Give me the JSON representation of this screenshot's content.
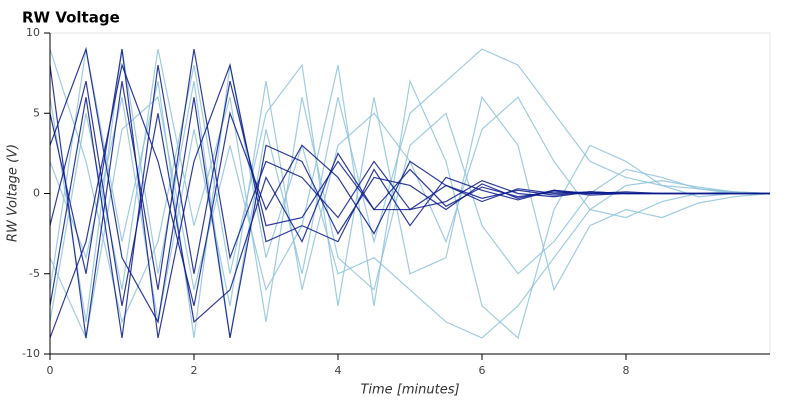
{
  "chart_data": {
    "type": "line",
    "title": "RW Voltage",
    "x_label": "Time [minutes]",
    "y_label": "RW Voltage (V)",
    "x": [
      0,
      0.5,
      1,
      1.5,
      2,
      2.5,
      3,
      3.5,
      4,
      4.5,
      5,
      5.5,
      6,
      6.5,
      7,
      7.5,
      8,
      8.5,
      9,
      9.5,
      10
    ],
    "xlim": [
      0,
      10
    ],
    "ylim": [
      -10,
      10
    ],
    "xticks": [
      0,
      2,
      4,
      6,
      8
    ],
    "yticks": [
      -10,
      -5,
      0,
      5,
      10
    ],
    "series": [
      {
        "color": "#8fc3dc",
        "values": [
          6,
          -8,
          9,
          -5,
          7,
          -9,
          4,
          -5,
          6,
          -3,
          5,
          7,
          9,
          8,
          5,
          2,
          1,
          0.5,
          0.3,
          0.1,
          0
        ]
      },
      {
        "color": "#8fc3dc",
        "values": [
          -6,
          9,
          -3,
          7,
          -9,
          8,
          -4,
          3,
          -5,
          -4,
          -6,
          -8,
          -9,
          -7,
          -4,
          -1,
          0.5,
          0.8,
          0.4,
          0.1,
          0
        ]
      },
      {
        "color": "#8fc3dc",
        "values": [
          2,
          -4,
          6,
          -8,
          4,
          -7,
          7,
          -6,
          3,
          5,
          2,
          -3,
          4,
          6,
          2,
          -1,
          -1.5,
          -0.5,
          0,
          0.1,
          0
        ]
      },
      {
        "color": "#8fc3dc",
        "values": [
          -8,
          5,
          -6,
          9,
          -2,
          6,
          -8,
          6,
          -4,
          -6,
          3,
          5,
          -2,
          -5,
          -3,
          0,
          1.5,
          1,
          0.3,
          0,
          0
        ]
      },
      {
        "color": "#8fc3dc",
        "values": [
          9,
          2,
          -8,
          -3,
          8,
          -5,
          5,
          8,
          -7,
          6,
          -5,
          -4,
          6,
          3,
          -6,
          -2,
          -1,
          -1.5,
          -0.6,
          -0.2,
          0
        ]
      },
      {
        "color": "#8fc3dc",
        "values": [
          -4,
          -9,
          4,
          6,
          -6,
          3,
          -6,
          -2,
          8,
          -7,
          7,
          2,
          -7,
          -9,
          -1,
          3,
          2,
          0.5,
          -0.2,
          0,
          0
        ]
      },
      {
        "color": "#0a1a8c",
        "values": [
          8,
          -9,
          7,
          -6,
          9,
          -4,
          2,
          1,
          -1.5,
          2,
          -1,
          0.5,
          -0.3,
          0.2,
          -0.1,
          0.1,
          0,
          0,
          0,
          0,
          0
        ]
      },
      {
        "color": "#0a1a8c",
        "values": [
          -7,
          6,
          -9,
          8,
          -5,
          7,
          -2,
          -1.5,
          2,
          -1,
          1.5,
          -0.8,
          0.4,
          -0.2,
          0.1,
          0,
          0,
          0,
          0,
          0,
          0
        ]
      },
      {
        "color": "#0a1a8c",
        "values": [
          3,
          9,
          -4,
          -8,
          6,
          -9,
          3,
          2,
          -2.5,
          1,
          0.5,
          -1,
          0.6,
          -0.3,
          0.2,
          -0.1,
          0,
          0,
          0,
          0,
          0
        ]
      },
      {
        "color": "#0a1a8c",
        "values": [
          -9,
          -3,
          8,
          2,
          -7,
          5,
          -1,
          3,
          1,
          -2.5,
          2,
          0.5,
          -0.5,
          0.3,
          0,
          0.1,
          0,
          0,
          0,
          0,
          0
        ]
      },
      {
        "color": "#0a1a8c",
        "values": [
          5,
          -5,
          9,
          -9,
          2,
          8,
          -3,
          -2,
          -3,
          1.5,
          -2,
          1,
          0.2,
          -0.4,
          0.2,
          0,
          0.1,
          0,
          0,
          0,
          0
        ]
      },
      {
        "color": "#0a1a8c",
        "values": [
          -2,
          7,
          -7,
          5,
          -8,
          -6,
          1,
          -3,
          2.5,
          -1,
          -1,
          -0.5,
          0.8,
          0,
          -0.2,
          0.1,
          0,
          0,
          0,
          0,
          0
        ]
      }
    ]
  }
}
